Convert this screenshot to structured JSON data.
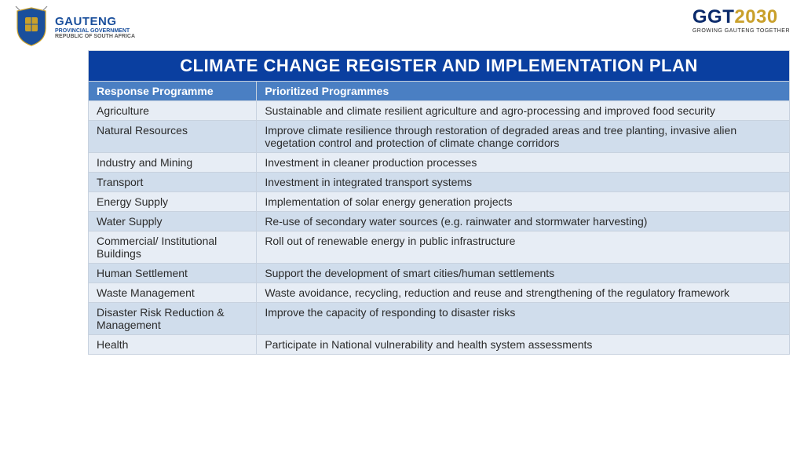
{
  "header": {
    "org_name": "GAUTENG",
    "org_sub1": "PROVINCIAL GOVERNMENT",
    "org_sub2": "REPUBLIC OF SOUTH AFRICA",
    "right_logo_main": "GGT",
    "right_logo_year": "2030",
    "right_tagline": "GROWING GAUTENG TOGETHER"
  },
  "title": "CLIMATE CHANGE REGISTER AND IMPLEMENTATION PLAN",
  "table": {
    "type": "table",
    "columns": [
      "Response Programme",
      "Prioritized Programmes"
    ],
    "rows": [
      [
        "Agriculture",
        "Sustainable and climate resilient agriculture and agro-processing and improved food security"
      ],
      [
        "Natural Resources",
        "Improve climate resilience through restoration of degraded areas and tree planting, invasive alien vegetation control and protection of climate change corridors"
      ],
      [
        "Industry and Mining",
        "Investment in cleaner production processes"
      ],
      [
        "Transport",
        "Investment in integrated transport systems"
      ],
      [
        "Energy Supply",
        "Implementation of solar energy generation projects"
      ],
      [
        "Water Supply",
        "Re-use of secondary water sources (e.g. rainwater and stormwater harvesting)"
      ],
      [
        "Commercial/ Institutional Buildings",
        "Roll out of renewable energy in public infrastructure"
      ],
      [
        "Human Settlement",
        "Support the development of smart cities/human settlements"
      ],
      [
        "Waste Management",
        "Waste avoidance, recycling, reduction and reuse and strengthening of the regulatory framework"
      ],
      [
        "Disaster Risk Reduction & Management",
        "Improve the capacity of responding to disaster risks"
      ],
      [
        "Health",
        "Participate in National vulnerability and health system assessments"
      ]
    ],
    "title_bg": "#0a3fa0",
    "title_color": "#ffffff",
    "header_bg": "#4a7fc3",
    "header_color": "#ffffff",
    "row_odd_bg": "#e7edf5",
    "row_even_bg": "#d0ddec",
    "border_color": "#c8d2df",
    "text_color": "#2b2b2b",
    "font_size": 14,
    "col_widths": [
      "24%",
      "76%"
    ]
  },
  "colors": {
    "brand_blue": "#1a4f9c",
    "dark_navy": "#0a2a6b",
    "gold": "#c9a02b"
  }
}
